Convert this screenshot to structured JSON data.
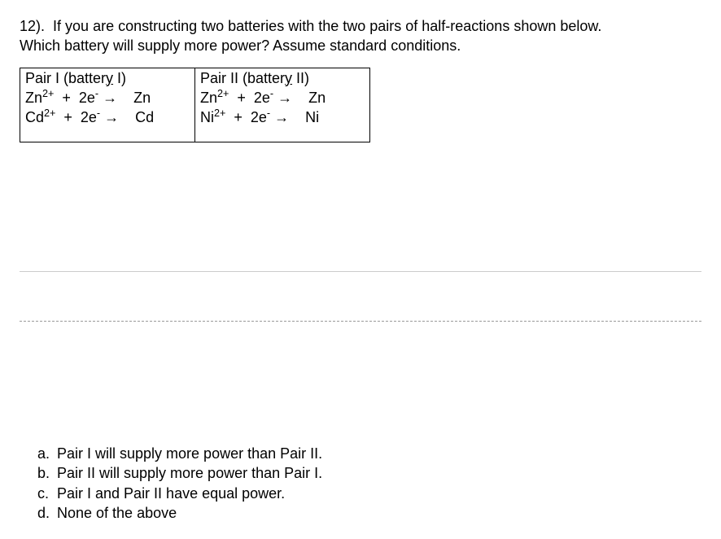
{
  "question": {
    "number_label": "12).",
    "text_line1": "If you are constructing two batteries with the two pairs of half-reactions shown below.",
    "text_line2": "Which battery will supply more power?  Assume standard conditions."
  },
  "table": {
    "pair1": {
      "header_prefix": "Pair I (batter",
      "header_underlined": "y",
      "header_suffix": " I)",
      "reaction1": {
        "species_l": "Zn",
        "charge_l": "2+",
        "plus": "  +  ",
        "electrons": "2e",
        "e_sup": "-",
        "arrow": " → ",
        "species_r": "   Zn"
      },
      "reaction2": {
        "species_l": "Cd",
        "charge_l": "2+",
        "plus": "  +  ",
        "electrons": "2e",
        "e_sup": "-",
        "arrow": " → ",
        "species_r": "   Cd"
      }
    },
    "pair2": {
      "header_prefix": "Pair II (batter",
      "header_underlined": "y",
      "header_suffix": " II)",
      "reaction1": {
        "species_l": "Zn",
        "charge_l": "2+",
        "plus": "  +  ",
        "electrons": "2e",
        "e_sup": "-",
        "arrow": " → ",
        "species_r": "   Zn"
      },
      "reaction2": {
        "species_l": "Ni",
        "charge_l": "2+",
        "plus": "  +  ",
        "electrons": "2e",
        "e_sup": "-",
        "arrow": " → ",
        "species_r": "   Ni"
      }
    }
  },
  "options": {
    "a": {
      "letter": "a.",
      "text": "Pair I will supply more power than Pair II."
    },
    "b": {
      "letter": "b.",
      "text": "Pair II will supply more power than Pair I."
    },
    "c": {
      "letter": "c.",
      "text": "Pair I and Pair II have equal power."
    },
    "d": {
      "letter": "d.",
      "text": "None of the above"
    }
  },
  "colors": {
    "text": "#000000",
    "background": "#ffffff",
    "border": "#000000",
    "separator_solid": "#cccccc",
    "separator_dashed": "#999999"
  },
  "typography": {
    "font_family": "Arial",
    "font_size_pt": 14
  }
}
